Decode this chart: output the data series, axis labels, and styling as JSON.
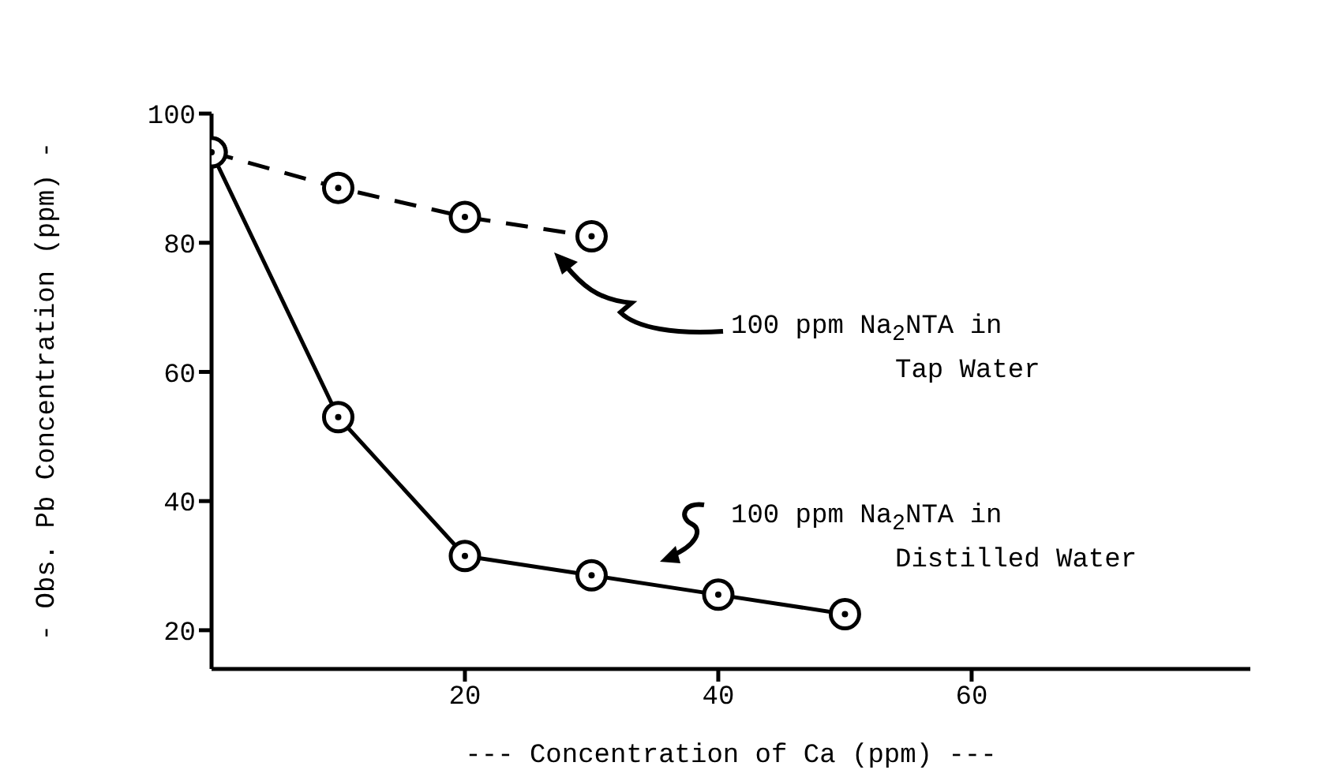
{
  "chart_data": {
    "type": "line",
    "xlabel": "--- Concentration of Ca (ppm) ---",
    "ylabel": "- Obs. Pb Concentration (ppm) -",
    "xlim": [
      0,
      82
    ],
    "xticks": [
      20,
      40,
      60
    ],
    "ylim": [
      14,
      100
    ],
    "yticks": [
      20,
      40,
      60,
      80,
      100
    ],
    "grid": false,
    "legend": false,
    "marker": "circle",
    "series": [
      {
        "color": "#000000",
        "line_style": "dashed",
        "x": [
          0,
          10,
          20,
          30
        ],
        "values": [
          94,
          88.5,
          84,
          81
        ]
      },
      {
        "color": "#000000",
        "line_style": "solid",
        "x": [
          0,
          10,
          20,
          30,
          40,
          50
        ],
        "values": [
          94,
          53,
          31.5,
          28.5,
          25.5,
          22.5
        ]
      }
    ],
    "annotations": [
      "100 ppm Na$_{2}$NTA in Tap Water",
      "100 ppm Na$_{2}$NTA in Distilled Water"
    ]
  }
}
